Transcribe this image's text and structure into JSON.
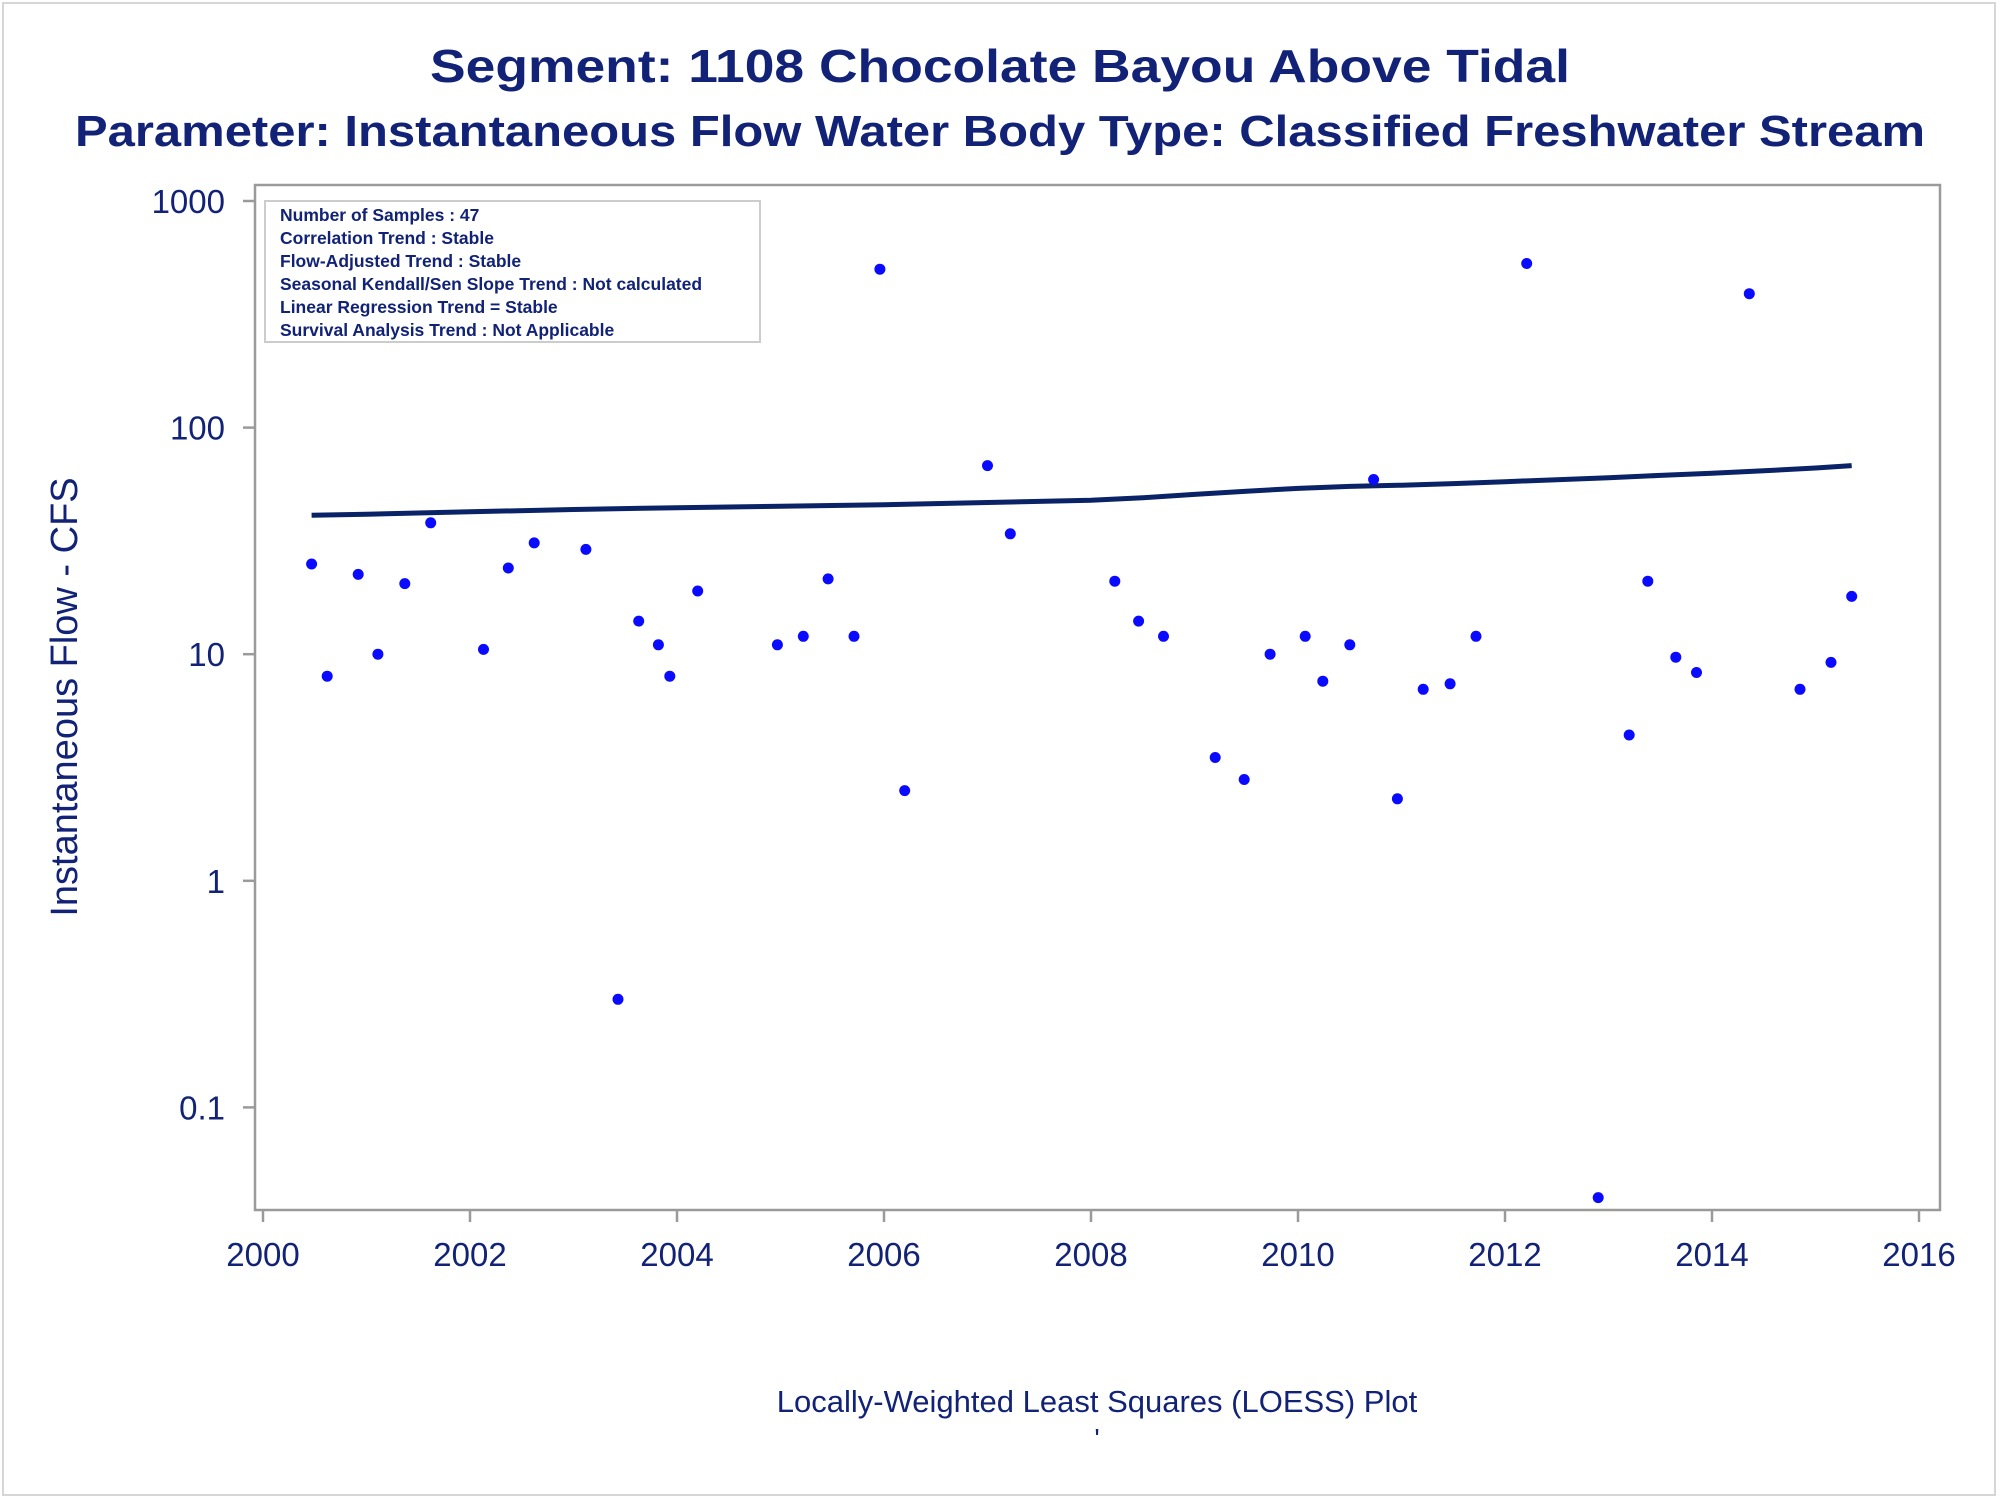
{
  "colors": {
    "text": "#112277",
    "marker": "#0a0aff",
    "trend_line": "#0a2266",
    "frame": "#9a9a9a"
  },
  "chart_data": {
    "type": "scatter",
    "title": "Segment: 1108  Chocolate Bayou Above Tidal",
    "subtitle": "Parameter: Instantaneous Flow   Water Body Type: Classified Freshwater Stream",
    "xlabel": "Locally-Weighted Least Squares (LOESS) Plot",
    "ylabel": "Instantaneous Flow - CFS",
    "footnote": "'",
    "xlim": [
      2000,
      2016
    ],
    "ylim": [
      0.04,
      1000
    ],
    "y_scale": "log",
    "x_ticks": [
      2000,
      2002,
      2004,
      2006,
      2008,
      2010,
      2012,
      2014,
      2016
    ],
    "x_tick_labels": [
      "2000",
      "2002",
      "2004",
      "2006",
      "2008",
      "2010",
      "2012",
      "2014",
      "2016"
    ],
    "y_ticks": [
      0.1,
      1,
      10,
      100,
      1000
    ],
    "y_tick_labels": [
      "0.1",
      "1",
      "10",
      "100",
      "1000"
    ],
    "grid": false,
    "legend_position": "top-left",
    "stats_box": [
      "Number of Samples : 47",
      "Correlation Trend : Stable",
      "Flow-Adjusted Trend : Stable",
      "Seasonal Kendall/Sen Slope Trend : Not calculated",
      "Linear Regression Trend = Stable",
      "Survival Analysis Trend : Not Applicable"
    ],
    "series": [
      {
        "type": "scatter",
        "points": [
          [
            2000.47,
            25
          ],
          [
            2000.62,
            8
          ],
          [
            2000.92,
            22.5
          ],
          [
            2001.11,
            10
          ],
          [
            2001.37,
            20.5
          ],
          [
            2001.62,
            38
          ],
          [
            2002.13,
            10.5
          ],
          [
            2002.37,
            24
          ],
          [
            2002.62,
            31
          ],
          [
            2003.12,
            29
          ],
          [
            2003.43,
            0.3
          ],
          [
            2003.63,
            14
          ],
          [
            2003.82,
            11
          ],
          [
            2003.93,
            8
          ],
          [
            2004.2,
            19
          ],
          [
            2004.97,
            11
          ],
          [
            2005.22,
            12
          ],
          [
            2005.46,
            21.5
          ],
          [
            2005.71,
            12
          ],
          [
            2005.96,
            500
          ],
          [
            2006.2,
            2.5
          ],
          [
            2007.0,
            68
          ],
          [
            2007.22,
            34
          ],
          [
            2008.23,
            21
          ],
          [
            2008.46,
            14
          ],
          [
            2008.7,
            12
          ],
          [
            2009.2,
            3.5
          ],
          [
            2009.48,
            2.8
          ],
          [
            2009.73,
            10
          ],
          [
            2010.07,
            12
          ],
          [
            2010.24,
            7.6
          ],
          [
            2010.5,
            11
          ],
          [
            2010.73,
            59
          ],
          [
            2010.96,
            2.3
          ],
          [
            2011.21,
            7
          ],
          [
            2011.47,
            7.4
          ],
          [
            2011.72,
            12
          ],
          [
            2012.21,
            530
          ],
          [
            2012.9,
            0.04
          ],
          [
            2013.2,
            4.4
          ],
          [
            2013.38,
            21
          ],
          [
            2013.65,
            9.7
          ],
          [
            2013.85,
            8.3
          ],
          [
            2014.36,
            390
          ],
          [
            2014.85,
            7
          ],
          [
            2015.15,
            9.2
          ],
          [
            2015.35,
            18
          ]
        ]
      },
      {
        "type": "line",
        "x": [
          2000.47,
          2001.0,
          2002.0,
          2003.0,
          2004.0,
          2005.0,
          2006.0,
          2007.0,
          2008.0,
          2008.5,
          2009.0,
          2009.5,
          2010.0,
          2010.5,
          2011.0,
          2011.5,
          2012.0,
          2012.5,
          2013.0,
          2013.5,
          2014.0,
          2014.5,
          2015.0,
          2015.35
        ],
        "y": [
          41,
          41.5,
          42.5,
          43.5,
          44.3,
          45,
          45.7,
          46.7,
          47.8,
          49,
          50.7,
          52.4,
          53.9,
          55,
          55.7,
          56.6,
          57.7,
          58.9,
          60.1,
          61.5,
          62.9,
          64.5,
          66.3,
          68
        ]
      }
    ]
  }
}
